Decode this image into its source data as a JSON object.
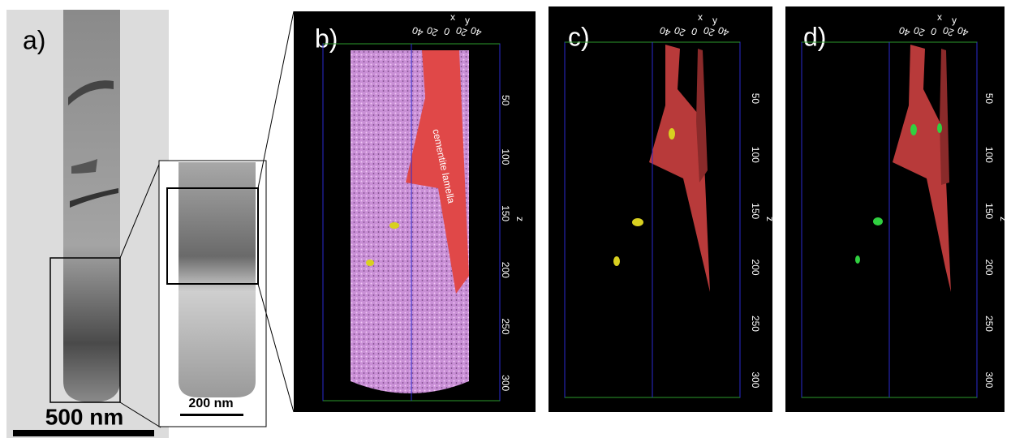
{
  "panel_a": {
    "label": "a)",
    "scale_bar": "500 nm",
    "inset_scale_bar": "200 nm"
  },
  "panel_b": {
    "label": "b)",
    "annotation": "cementite lamella"
  },
  "panel_c": {
    "label": "c)"
  },
  "panel_d": {
    "label": "d)"
  },
  "axes": {
    "z_label": "z",
    "x_label": "x",
    "y_label": "y",
    "z_ticks": [
      50,
      100,
      150,
      200,
      250,
      300
    ],
    "top_ticks": [
      40,
      20,
      0,
      20,
      40
    ]
  }
}
